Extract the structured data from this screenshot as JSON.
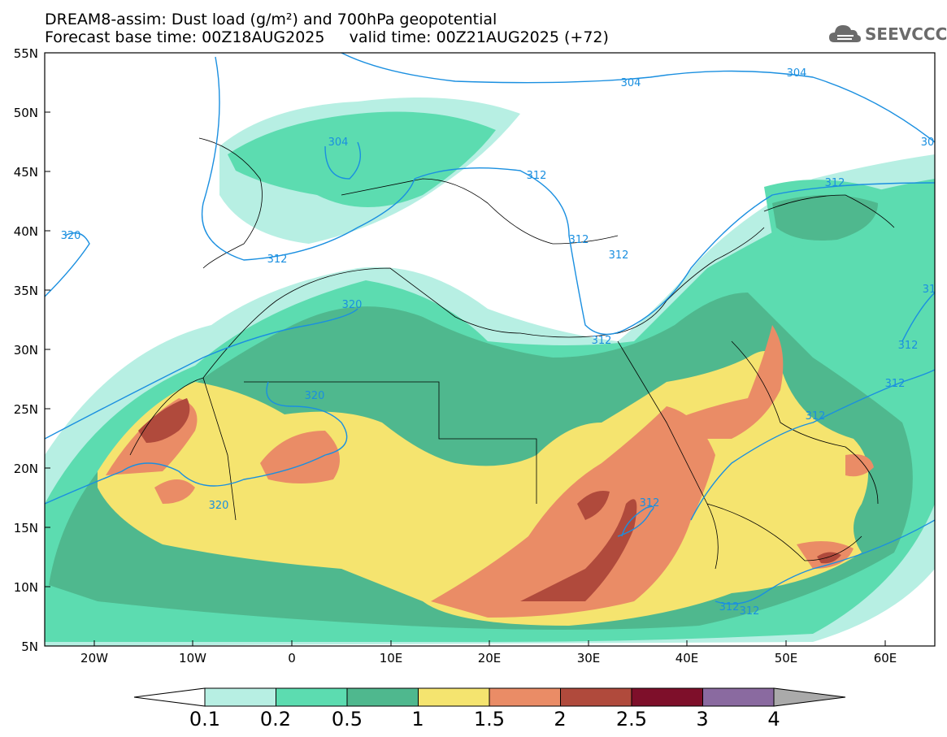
{
  "title": {
    "line1": "DREAM8-assim: Dust load (g/m²) and 700hPa geopotential",
    "line2": "Forecast base time: 00Z18AUG2025     valid time: 00Z21AUG2025 (+72)"
  },
  "logo": {
    "text": "SEEVCCC",
    "icon": "cloud-icon"
  },
  "axes": {
    "lat_labels": [
      "55N",
      "50N",
      "45N",
      "40N",
      "35N",
      "30N",
      "25N",
      "20N",
      "15N",
      "10N",
      "5N"
    ],
    "lon_labels": [
      "20W",
      "10W",
      "0",
      "10E",
      "20E",
      "30E",
      "40E",
      "50E",
      "60E"
    ]
  },
  "contour_labels": [
    "304",
    "304",
    "304",
    "30",
    "312",
    "312",
    "312",
    "312",
    "312",
    "312",
    "312",
    "312",
    "312",
    "312",
    "312",
    "31",
    "320",
    "320",
    "320",
    "320",
    "312"
  ],
  "colorbar": {
    "labels": [
      "0.1",
      "0.2",
      "0.5",
      "1",
      "1.5",
      "2",
      "2.5",
      "3",
      "4"
    ],
    "colors": [
      "#b7efe3",
      "#5cdcb0",
      "#4fb88e",
      "#f5e46f",
      "#ea8c66",
      "#b04a3c",
      "#7e0f2a",
      "#8a6aa0",
      "#aaaaaa"
    ]
  }
}
